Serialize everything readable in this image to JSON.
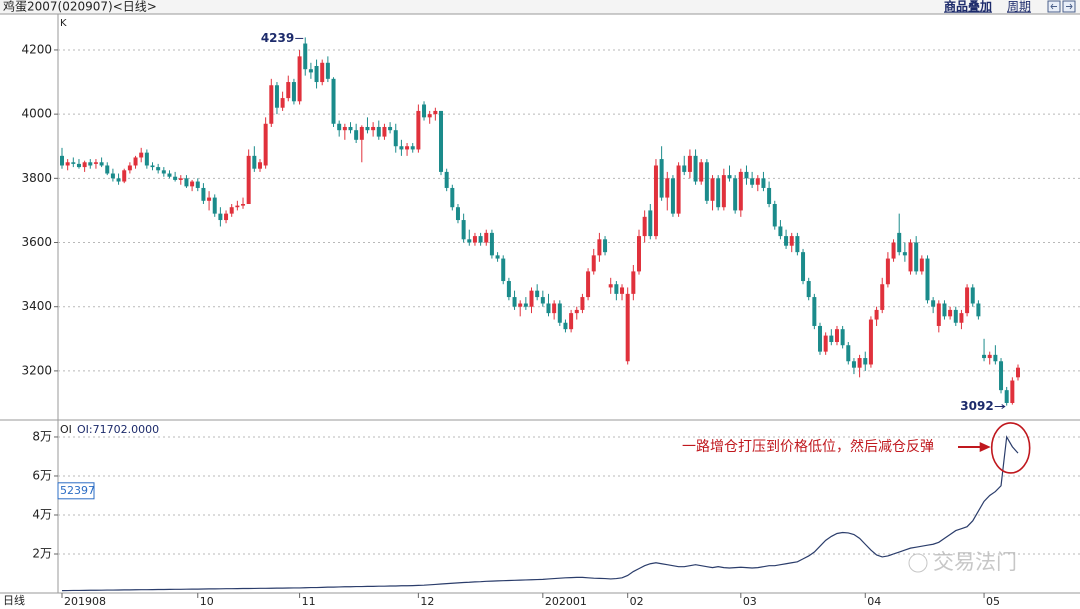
{
  "header": {
    "title": "鸡蛋2007(020907)<日线>",
    "buttons": [
      "商品叠加",
      "周期"
    ]
  },
  "watermark": "交易法门",
  "chart_data": [
    {
      "type": "candlestick",
      "label": "K",
      "up_color": "#e0313c",
      "down_color": "#1b8b8b",
      "grid": true,
      "ylim": [
        3047,
        4312
      ],
      "yticks": [
        3200,
        3400,
        3600,
        3800,
        4000,
        4200
      ],
      "high_label": 4239,
      "low_label": 3092,
      "open": [
        3870,
        3840,
        3850,
        3845,
        3835,
        3850,
        3845,
        3850,
        3840,
        3815,
        3800,
        3790,
        3825,
        3840,
        3865,
        3880,
        3840,
        3835,
        3825,
        3815,
        3805,
        3795,
        3800,
        3775,
        3790,
        3770,
        3730,
        3740,
        3690,
        3670,
        3690,
        3710,
        3715,
        3720,
        3870,
        3830,
        3840,
        3970,
        4090,
        4020,
        4050,
        4100,
        4040,
        4220,
        4140,
        4150,
        4100,
        4160,
        4110,
        3970,
        3950,
        3960,
        3950,
        3920,
        3960,
        3950,
        3960,
        3930,
        3960,
        3950,
        3900,
        3890,
        3900,
        3890,
        4030,
        3990,
        4000,
        4010,
        3820,
        3770,
        3710,
        3670,
        3610,
        3600,
        3620,
        3600,
        3630,
        3560,
        3550,
        3480,
        3430,
        3400,
        3410,
        3400,
        3450,
        3430,
        3410,
        3380,
        3410,
        3350,
        3330,
        3380,
        3390,
        3430,
        3510,
        3560,
        3610,
        3460,
        3470,
        3440,
        3230,
        3440,
        3510,
        3620,
        3700,
        3620,
        3860,
        3740,
        3800,
        3690,
        3840,
        3820,
        3870,
        3790,
        3850,
        3730,
        3800,
        3710,
        3810,
        3800,
        3700,
        3820,
        3800,
        3780,
        3800,
        3770,
        3720,
        3650,
        3620,
        3590,
        3620,
        3570,
        3480,
        3430,
        3340,
        3260,
        3310,
        3290,
        3330,
        3280,
        3230,
        3210,
        3240,
        3220,
        3360,
        3390,
        3470,
        3550,
        3630,
        3570,
        3510,
        3600,
        3510,
        3550,
        3420,
        3340,
        3410,
        3370,
        3390,
        3350,
        3380,
        3460,
        3410,
        3250,
        3240,
        3250,
        3230,
        3140,
        3100,
        3180
      ],
      "high": [
        3895,
        3860,
        3865,
        3860,
        3855,
        3860,
        3860,
        3865,
        3850,
        3830,
        3815,
        3830,
        3850,
        3870,
        3895,
        3890,
        3850,
        3845,
        3835,
        3825,
        3820,
        3810,
        3810,
        3795,
        3800,
        3785,
        3760,
        3750,
        3710,
        3700,
        3720,
        3730,
        3740,
        3890,
        3900,
        3860,
        3990,
        4110,
        4100,
        4070,
        4120,
        4110,
        4200,
        4239,
        4160,
        4170,
        4170,
        4180,
        4115,
        3980,
        3970,
        3975,
        3970,
        3965,
        3990,
        3975,
        3980,
        3970,
        3975,
        3970,
        3920,
        3910,
        3910,
        4030,
        4040,
        4010,
        4020,
        4010,
        3830,
        3780,
        3720,
        3690,
        3640,
        3630,
        3630,
        3640,
        3640,
        3570,
        3560,
        3490,
        3450,
        3420,
        3430,
        3460,
        3470,
        3450,
        3440,
        3420,
        3420,
        3360,
        3390,
        3400,
        3440,
        3520,
        3580,
        3630,
        3620,
        3490,
        3480,
        3470,
        3460,
        3530,
        3640,
        3700,
        3720,
        3860,
        3900,
        3820,
        3810,
        3850,
        3870,
        3890,
        3890,
        3860,
        3860,
        3810,
        3810,
        3830,
        3840,
        3810,
        3830,
        3840,
        3820,
        3810,
        3820,
        3790,
        3730,
        3670,
        3640,
        3630,
        3630,
        3580,
        3490,
        3440,
        3350,
        3320,
        3330,
        3340,
        3340,
        3290,
        3240,
        3250,
        3260,
        3370,
        3400,
        3490,
        3570,
        3610,
        3690,
        3600,
        3610,
        3620,
        3560,
        3560,
        3430,
        3420,
        3420,
        3400,
        3400,
        3390,
        3470,
        3470,
        3420,
        3300,
        3260,
        3280,
        3240,
        3150,
        3180,
        3220
      ],
      "low": [
        3830,
        3825,
        3835,
        3830,
        3820,
        3830,
        3830,
        3835,
        3810,
        3790,
        3780,
        3785,
        3815,
        3830,
        3850,
        3830,
        3825,
        3815,
        3805,
        3800,
        3790,
        3780,
        3770,
        3760,
        3760,
        3720,
        3700,
        3680,
        3650,
        3660,
        3680,
        3700,
        3705,
        3720,
        3820,
        3820,
        3830,
        3960,
        4000,
        4010,
        4040,
        4030,
        4030,
        4120,
        4110,
        4080,
        4090,
        4100,
        3960,
        3930,
        3920,
        3940,
        3910,
        3850,
        3940,
        3930,
        3920,
        3920,
        3940,
        3880,
        3870,
        3870,
        3880,
        3880,
        3980,
        3970,
        3980,
        3810,
        3760,
        3700,
        3660,
        3600,
        3590,
        3590,
        3590,
        3590,
        3550,
        3540,
        3470,
        3420,
        3390,
        3370,
        3390,
        3380,
        3420,
        3400,
        3370,
        3360,
        3340,
        3320,
        3320,
        3360,
        3380,
        3420,
        3500,
        3540,
        3560,
        3440,
        3420,
        3420,
        3220,
        3420,
        3500,
        3600,
        3610,
        3610,
        3730,
        3700,
        3680,
        3680,
        3810,
        3800,
        3780,
        3780,
        3720,
        3700,
        3700,
        3700,
        3790,
        3690,
        3680,
        3780,
        3770,
        3760,
        3760,
        3710,
        3640,
        3610,
        3580,
        3570,
        3560,
        3470,
        3420,
        3330,
        3250,
        3250,
        3280,
        3280,
        3270,
        3220,
        3190,
        3180,
        3200,
        3210,
        3340,
        3380,
        3460,
        3540,
        3560,
        3540,
        3500,
        3500,
        3500,
        3410,
        3380,
        3320,
        3360,
        3360,
        3340,
        3330,
        3370,
        3400,
        3360,
        3230,
        3220,
        3220,
        3130,
        3092,
        3095,
        3170
      ],
      "close": [
        3840,
        3850,
        3845,
        3835,
        3850,
        3840,
        3850,
        3840,
        3815,
        3800,
        3790,
        3825,
        3840,
        3865,
        3880,
        3840,
        3835,
        3825,
        3815,
        3805,
        3795,
        3800,
        3775,
        3790,
        3770,
        3730,
        3740,
        3690,
        3670,
        3690,
        3710,
        3715,
        3720,
        3870,
        3830,
        3850,
        3970,
        4090,
        4020,
        4050,
        4100,
        4040,
        4180,
        4140,
        4130,
        4100,
        4160,
        4110,
        3970,
        3950,
        3960,
        3950,
        3920,
        3960,
        3950,
        3960,
        3930,
        3960,
        3950,
        3900,
        3890,
        3900,
        3890,
        4010,
        3990,
        4000,
        4010,
        3820,
        3770,
        3710,
        3670,
        3610,
        3600,
        3620,
        3600,
        3630,
        3560,
        3550,
        3480,
        3430,
        3400,
        3410,
        3400,
        3450,
        3430,
        3410,
        3380,
        3410,
        3350,
        3330,
        3380,
        3390,
        3430,
        3510,
        3560,
        3610,
        3570,
        3470,
        3440,
        3460,
        3440,
        3510,
        3620,
        3680,
        3620,
        3840,
        3740,
        3800,
        3690,
        3840,
        3820,
        3870,
        3790,
        3850,
        3730,
        3800,
        3710,
        3810,
        3800,
        3700,
        3820,
        3800,
        3780,
        3800,
        3770,
        3720,
        3650,
        3620,
        3590,
        3620,
        3570,
        3480,
        3430,
        3340,
        3260,
        3310,
        3290,
        3330,
        3280,
        3230,
        3210,
        3240,
        3220,
        3360,
        3390,
        3470,
        3550,
        3600,
        3570,
        3560,
        3600,
        3510,
        3550,
        3420,
        3400,
        3410,
        3370,
        3390,
        3350,
        3380,
        3460,
        3410,
        3370,
        3240,
        3250,
        3230,
        3140,
        3100,
        3170,
        3210
      ]
    },
    {
      "type": "line",
      "xlabel": "日线",
      "readout": "OI:71702.0000",
      "cursor_value": 52397,
      "annotation": "一路增仓打压到价格低位，然后减仓反弹",
      "annotation_color": "#c0181e",
      "grid": true,
      "categories": [
        "201908",
        null,
        null,
        null,
        null,
        null,
        null,
        null,
        null,
        null,
        null,
        null,
        null,
        null,
        null,
        null,
        null,
        null,
        null,
        null,
        null,
        null,
        null,
        null,
        "10",
        null,
        null,
        null,
        null,
        null,
        null,
        null,
        null,
        null,
        null,
        null,
        null,
        null,
        null,
        null,
        null,
        null,
        "11",
        null,
        null,
        null,
        null,
        null,
        null,
        null,
        null,
        null,
        null,
        null,
        null,
        null,
        null,
        null,
        null,
        null,
        null,
        null,
        null,
        "12",
        null,
        null,
        null,
        null,
        null,
        null,
        null,
        null,
        null,
        null,
        null,
        null,
        null,
        null,
        null,
        null,
        null,
        null,
        null,
        null,
        null,
        "202001",
        null,
        null,
        null,
        null,
        null,
        null,
        null,
        null,
        null,
        null,
        null,
        null,
        null,
        null,
        "02",
        null,
        null,
        null,
        null,
        null,
        null,
        null,
        null,
        null,
        null,
        null,
        null,
        null,
        null,
        null,
        null,
        null,
        null,
        null,
        "03",
        null,
        null,
        null,
        null,
        null,
        null,
        null,
        null,
        null,
        null,
        null,
        null,
        null,
        null,
        null,
        null,
        null,
        null,
        null,
        null,
        null,
        "04",
        null,
        null,
        null,
        null,
        null,
        null,
        null,
        null,
        null,
        null,
        null,
        null,
        null,
        null,
        null,
        null,
        null,
        null,
        null,
        null,
        "05",
        null,
        null,
        null,
        null,
        null,
        null
      ],
      "ylim": [
        0,
        88700
      ],
      "yticks": [
        {
          "value": 20000,
          "label": "2万"
        },
        {
          "value": 40000,
          "label": "4万"
        },
        {
          "value": 60000,
          "label": "6万"
        },
        {
          "value": 80000,
          "label": "8万"
        }
      ],
      "series": [
        {
          "name": "OI",
          "color": "#2b3d6b",
          "values": [
            1200,
            1250,
            1300,
            1300,
            1350,
            1400,
            1400,
            1450,
            1500,
            1500,
            1550,
            1600,
            1600,
            1650,
            1700,
            1700,
            1750,
            1800,
            1800,
            1850,
            1900,
            1900,
            1950,
            2000,
            2000,
            2050,
            2100,
            2100,
            2150,
            2200,
            2200,
            2250,
            2300,
            2300,
            2350,
            2400,
            2400,
            2450,
            2500,
            2500,
            2550,
            2600,
            2600,
            2700,
            2800,
            2800,
            2900,
            3000,
            3000,
            3100,
            3200,
            3200,
            3300,
            3300,
            3400,
            3400,
            3500,
            3500,
            3600,
            3600,
            3700,
            3700,
            3800,
            3900,
            4000,
            4200,
            4400,
            4600,
            4800,
            5000,
            5200,
            5400,
            5500,
            5700,
            5800,
            6000,
            6100,
            6200,
            6300,
            6400,
            6500,
            6600,
            6700,
            6800,
            6900,
            7000,
            7200,
            7400,
            7600,
            7800,
            7900,
            8000,
            8000,
            7800,
            7600,
            7500,
            7400,
            7200,
            7400,
            7800,
            9000,
            11000,
            12500,
            14000,
            15000,
            15500,
            15000,
            14500,
            14000,
            13500,
            13500,
            14000,
            14500,
            14000,
            13500,
            13000,
            13500,
            13000,
            12800,
            13000,
            13200,
            13000,
            12800,
            13000,
            13500,
            14000,
            14000,
            14500,
            15000,
            15500,
            16000,
            17500,
            19000,
            21000,
            24000,
            27000,
            29000,
            30500,
            31000,
            30800,
            30000,
            28000,
            25000,
            22000,
            19500,
            18500,
            19000,
            20000,
            21000,
            22000,
            23000,
            23500,
            24000,
            24500,
            25000,
            26000,
            28000,
            30000,
            32000,
            33000,
            34000,
            37000,
            42000,
            47000,
            50000,
            52000,
            55000,
            80000,
            75000,
            71702
          ]
        }
      ]
    }
  ]
}
